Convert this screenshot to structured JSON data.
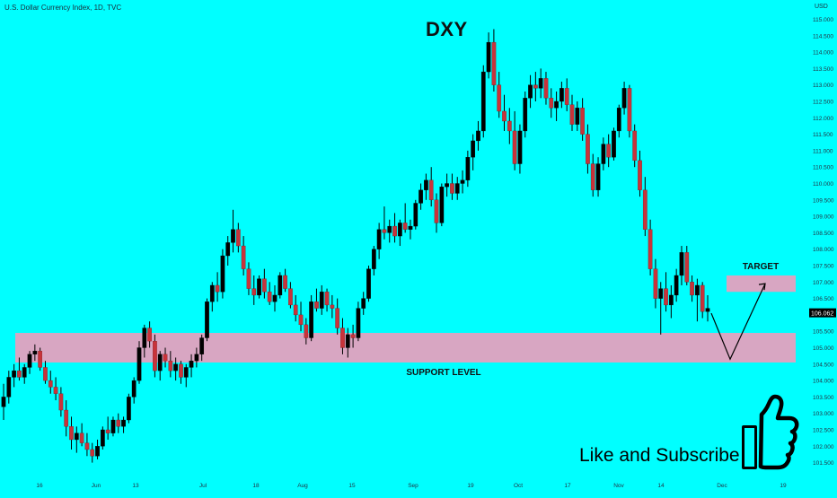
{
  "header": {
    "symbol": "U.S. Dollar Currency Index, 1D, TVC",
    "currency": "USD"
  },
  "chart_data": {
    "type": "candlestick",
    "title": "DXY",
    "y_ticks": [
      "115.000",
      "114.500",
      "114.000",
      "113.500",
      "113.000",
      "112.500",
      "112.000",
      "111.500",
      "111.000",
      "110.500",
      "110.000",
      "109.500",
      "109.000",
      "108.500",
      "108.000",
      "107.500",
      "107.000",
      "106.500",
      "106.000",
      "105.500",
      "105.000",
      "104.500",
      "104.000",
      "103.500",
      "103.000",
      "102.500",
      "102.000",
      "101.500"
    ],
    "x_ticks": [
      "16",
      "Jun",
      "13",
      "Jul",
      "18",
      "Aug",
      "15",
      "Sep",
      "19",
      "Oct",
      "17",
      "Nov",
      "14",
      "Dec",
      "19"
    ],
    "ylim": [
      101.3,
      115.3
    ],
    "last_price": "106.062",
    "colors": {
      "background": "#00ffff",
      "up": "#000000",
      "down": "#c8333a",
      "zone": "#d8a6c2",
      "price_tag": "#000000"
    },
    "zones": [
      {
        "name": "support",
        "label": "SUPPORT LEVEL",
        "from": 104.55,
        "to": 105.45
      },
      {
        "name": "target",
        "label": "TARGET",
        "from": 106.7,
        "to": 107.2
      }
    ],
    "projection_path": [
      106.05,
      104.65,
      106.95
    ],
    "candles": [
      [
        103.2,
        103.9,
        102.8,
        103.5
      ],
      [
        103.5,
        104.3,
        103.3,
        104.1
      ],
      [
        104.1,
        104.5,
        103.8,
        104.3
      ],
      [
        104.3,
        104.7,
        104.0,
        104.1
      ],
      [
        104.1,
        104.5,
        103.9,
        104.4
      ],
      [
        104.4,
        104.9,
        104.2,
        104.8
      ],
      [
        104.8,
        105.1,
        104.6,
        104.9
      ],
      [
        104.9,
        105.0,
        104.3,
        104.4
      ],
      [
        104.4,
        104.6,
        103.9,
        104.0
      ],
      [
        104.0,
        104.3,
        103.6,
        103.8
      ],
      [
        103.8,
        104.1,
        103.4,
        103.6
      ],
      [
        103.6,
        103.8,
        102.9,
        103.1
      ],
      [
        103.1,
        103.4,
        102.3,
        102.6
      ],
      [
        102.6,
        102.9,
        101.9,
        102.2
      ],
      [
        102.2,
        102.6,
        101.8,
        102.4
      ],
      [
        102.4,
        102.7,
        102.0,
        102.1
      ],
      [
        102.1,
        102.4,
        101.7,
        101.9
      ],
      [
        101.9,
        102.1,
        101.5,
        101.7
      ],
      [
        101.7,
        102.2,
        101.6,
        102.0
      ],
      [
        102.0,
        102.6,
        101.9,
        102.5
      ],
      [
        102.5,
        102.9,
        102.2,
        102.4
      ],
      [
        102.4,
        102.9,
        102.3,
        102.8
      ],
      [
        102.8,
        103.0,
        102.4,
        102.6
      ],
      [
        102.6,
        102.9,
        102.4,
        102.8
      ],
      [
        102.8,
        103.6,
        102.7,
        103.5
      ],
      [
        103.5,
        104.1,
        103.3,
        104.0
      ],
      [
        104.0,
        105.2,
        103.9,
        105.0
      ],
      [
        105.0,
        105.7,
        104.7,
        105.6
      ],
      [
        105.6,
        105.8,
        105.0,
        105.2
      ],
      [
        105.2,
        105.4,
        104.1,
        104.3
      ],
      [
        104.3,
        104.9,
        104.0,
        104.8
      ],
      [
        104.8,
        105.0,
        104.4,
        104.6
      ],
      [
        104.6,
        104.9,
        104.1,
        104.3
      ],
      [
        104.3,
        104.7,
        104.0,
        104.5
      ],
      [
        104.5,
        104.6,
        103.9,
        104.1
      ],
      [
        104.1,
        104.5,
        103.8,
        104.4
      ],
      [
        104.4,
        104.8,
        104.1,
        104.6
      ],
      [
        104.6,
        105.0,
        104.4,
        104.8
      ],
      [
        104.8,
        105.4,
        104.6,
        105.3
      ],
      [
        105.3,
        106.5,
        105.2,
        106.4
      ],
      [
        106.4,
        107.0,
        106.1,
        106.9
      ],
      [
        106.9,
        107.3,
        106.4,
        106.7
      ],
      [
        106.7,
        108.0,
        106.5,
        107.8
      ],
      [
        107.8,
        108.4,
        107.5,
        108.2
      ],
      [
        108.2,
        109.2,
        107.9,
        108.6
      ],
      [
        108.6,
        108.8,
        107.9,
        108.1
      ],
      [
        108.1,
        108.4,
        107.2,
        107.4
      ],
      [
        107.4,
        107.6,
        106.6,
        106.8
      ],
      [
        106.8,
        107.2,
        106.3,
        106.6
      ],
      [
        106.6,
        107.2,
        106.5,
        107.1
      ],
      [
        107.1,
        107.4,
        106.5,
        106.7
      ],
      [
        106.7,
        107.0,
        106.3,
        106.4
      ],
      [
        106.4,
        106.9,
        106.1,
        106.6
      ],
      [
        106.6,
        107.3,
        106.5,
        107.2
      ],
      [
        107.2,
        107.4,
        106.7,
        106.8
      ],
      [
        106.8,
        107.0,
        106.2,
        106.3
      ],
      [
        106.3,
        106.6,
        105.8,
        106.0
      ],
      [
        106.0,
        106.4,
        105.5,
        105.7
      ],
      [
        105.7,
        105.9,
        105.1,
        105.3
      ],
      [
        105.3,
        106.6,
        105.2,
        106.4
      ],
      [
        106.4,
        106.8,
        106.1,
        106.2
      ],
      [
        106.2,
        106.9,
        106.0,
        106.7
      ],
      [
        106.7,
        106.8,
        106.1,
        106.3
      ],
      [
        106.3,
        106.6,
        105.9,
        106.2
      ],
      [
        106.2,
        106.5,
        105.4,
        105.6
      ],
      [
        105.6,
        105.9,
        104.8,
        105.0
      ],
      [
        105.0,
        105.6,
        104.7,
        105.4
      ],
      [
        105.4,
        105.7,
        105.0,
        105.3
      ],
      [
        105.3,
        106.4,
        105.2,
        106.2
      ],
      [
        106.2,
        106.7,
        106.0,
        106.5
      ],
      [
        106.5,
        107.5,
        106.4,
        107.4
      ],
      [
        107.4,
        108.1,
        107.2,
        108.0
      ],
      [
        108.0,
        108.8,
        107.7,
        108.6
      ],
      [
        108.6,
        109.3,
        108.3,
        108.5
      ],
      [
        108.5,
        108.9,
        108.2,
        108.7
      ],
      [
        108.7,
        109.1,
        108.2,
        108.4
      ],
      [
        108.4,
        108.9,
        108.1,
        108.8
      ],
      [
        108.8,
        109.4,
        108.5,
        108.6
      ],
      [
        108.6,
        108.9,
        108.3,
        108.7
      ],
      [
        108.7,
        109.5,
        108.6,
        109.4
      ],
      [
        109.4,
        110.0,
        109.2,
        109.8
      ],
      [
        109.8,
        110.3,
        109.5,
        110.1
      ],
      [
        110.1,
        110.5,
        109.3,
        109.5
      ],
      [
        109.5,
        109.7,
        108.5,
        108.8
      ],
      [
        108.8,
        110.0,
        108.7,
        109.9
      ],
      [
        109.9,
        110.3,
        109.6,
        110.0
      ],
      [
        110.0,
        110.3,
        109.5,
        109.7
      ],
      [
        109.7,
        110.2,
        109.5,
        110.0
      ],
      [
        110.0,
        110.4,
        109.7,
        110.1
      ],
      [
        110.1,
        111.0,
        109.9,
        110.8
      ],
      [
        110.8,
        111.5,
        110.4,
        111.3
      ],
      [
        111.3,
        111.9,
        111.0,
        111.6
      ],
      [
        111.6,
        113.6,
        111.4,
        113.4
      ],
      [
        113.4,
        114.6,
        113.2,
        114.3
      ],
      [
        114.3,
        114.7,
        112.8,
        113.0
      ],
      [
        113.0,
        113.4,
        112.0,
        112.2
      ],
      [
        112.2,
        112.7,
        111.6,
        111.9
      ],
      [
        111.9,
        112.3,
        111.2,
        111.6
      ],
      [
        111.6,
        112.2,
        110.4,
        110.6
      ],
      [
        110.6,
        111.8,
        110.3,
        111.6
      ],
      [
        111.6,
        112.8,
        111.4,
        112.6
      ],
      [
        112.6,
        113.3,
        112.3,
        113.0
      ],
      [
        113.0,
        113.4,
        112.5,
        112.9
      ],
      [
        112.9,
        113.5,
        112.6,
        113.2
      ],
      [
        113.2,
        113.4,
        112.4,
        112.6
      ],
      [
        112.6,
        112.9,
        112.0,
        112.3
      ],
      [
        112.3,
        112.8,
        111.9,
        112.5
      ],
      [
        112.5,
        113.1,
        112.3,
        112.9
      ],
      [
        112.9,
        113.2,
        112.2,
        112.4
      ],
      [
        112.4,
        112.7,
        111.6,
        111.8
      ],
      [
        111.8,
        112.5,
        111.6,
        112.3
      ],
      [
        112.3,
        112.6,
        111.3,
        111.5
      ],
      [
        111.5,
        111.8,
        110.3,
        110.6
      ],
      [
        110.6,
        110.9,
        109.6,
        109.8
      ],
      [
        109.8,
        110.8,
        109.6,
        110.6
      ],
      [
        110.6,
        111.4,
        110.4,
        111.2
      ],
      [
        111.2,
        111.5,
        110.5,
        110.8
      ],
      [
        110.8,
        111.7,
        110.7,
        111.6
      ],
      [
        111.6,
        112.4,
        111.4,
        112.3
      ],
      [
        112.3,
        113.1,
        112.1,
        112.9
      ],
      [
        112.9,
        113.0,
        111.4,
        111.6
      ],
      [
        111.6,
        111.8,
        110.5,
        110.7
      ],
      [
        110.7,
        111.0,
        109.6,
        109.8
      ],
      [
        109.8,
        110.2,
        108.4,
        108.6
      ],
      [
        108.6,
        108.9,
        107.2,
        107.4
      ],
      [
        107.4,
        107.7,
        106.2,
        106.5
      ],
      [
        106.5,
        107.0,
        105.4,
        106.8
      ],
      [
        106.8,
        107.3,
        106.1,
        106.3
      ],
      [
        106.3,
        106.9,
        105.9,
        106.6
      ],
      [
        106.6,
        107.4,
        106.4,
        107.2
      ],
      [
        107.2,
        108.1,
        106.9,
        107.9
      ],
      [
        107.9,
        108.1,
        106.9,
        107.0
      ],
      [
        107.0,
        107.2,
        106.4,
        106.6
      ],
      [
        106.6,
        107.1,
        105.8,
        106.9
      ],
      [
        106.9,
        107.0,
        105.9,
        106.1
      ],
      [
        106.1,
        106.6,
        105.8,
        106.2
      ]
    ]
  },
  "cta": {
    "text": "Like and Subscribe"
  }
}
